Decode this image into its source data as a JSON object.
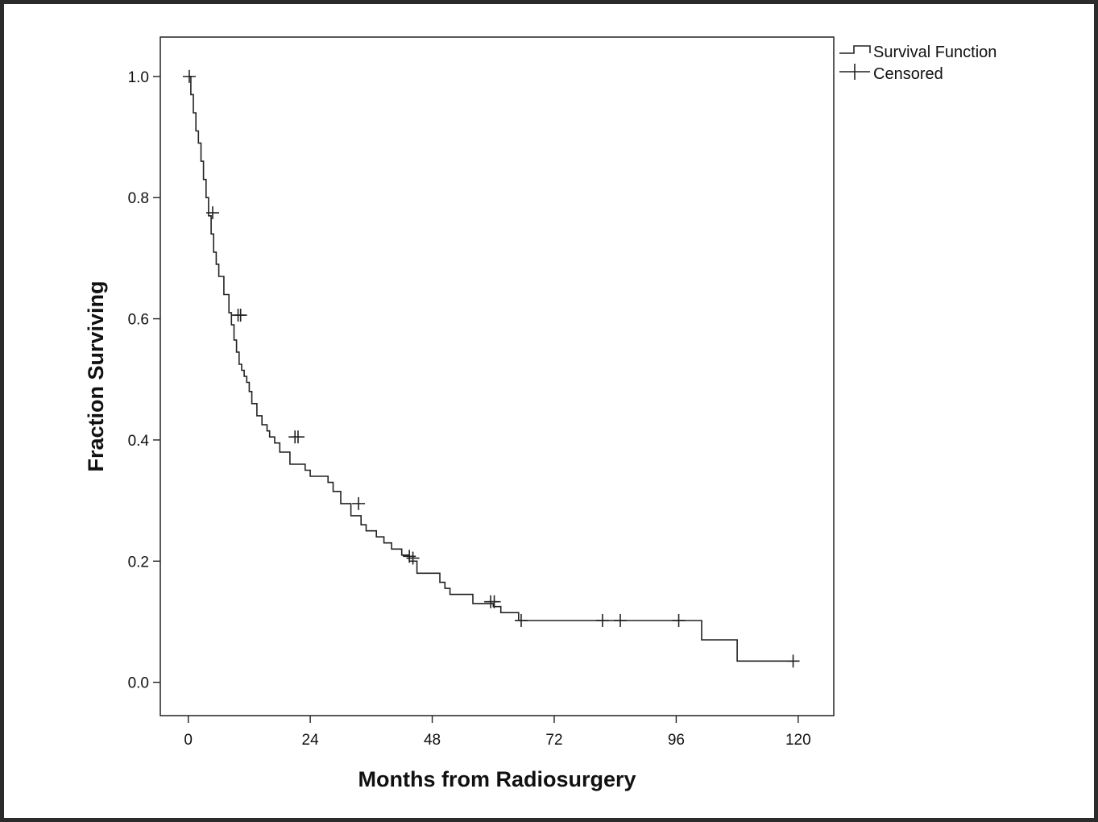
{
  "chart_data": {
    "type": "line",
    "subtype": "kaplan-meier",
    "title": "",
    "xlabel": "Months from Radiosurgery",
    "ylabel": "Fraction Surviving",
    "xlim": [
      -5.5,
      127
    ],
    "ylim": [
      -0.055,
      1.065
    ],
    "x_ticks": [
      0,
      24,
      48,
      72,
      96,
      120
    ],
    "x_tick_labels": [
      "0",
      "24",
      "48",
      "72",
      "96",
      "120"
    ],
    "y_ticks": [
      0.0,
      0.2,
      0.4,
      0.6,
      0.8,
      1.0
    ],
    "y_tick_labels": [
      "0.0",
      "0.2",
      "0.4",
      "0.6",
      "0.8",
      "1.0"
    ],
    "grid": false,
    "legend_placement": "outside-top-right",
    "legend": [
      {
        "label": "Survival Function",
        "symbol": "step-line"
      },
      {
        "label": "Censored",
        "symbol": "plus"
      }
    ],
    "series": [
      {
        "name": "Survival Function",
        "x": [
          0,
          0.5,
          1.0,
          1.5,
          2.0,
          2.5,
          3.0,
          3.5,
          4.0,
          4.5,
          5.0,
          5.5,
          6.0,
          7.0,
          8.0,
          8.5,
          9.0,
          9.5,
          10.0,
          10.5,
          11.0,
          11.5,
          12.0,
          12.5,
          13.5,
          14.5,
          15.5,
          16.0,
          17.0,
          18.0,
          20.0,
          22.0,
          23.0,
          24.0,
          27.5,
          28.5,
          30.0,
          32.0,
          34.0,
          35.0,
          37.0,
          38.5,
          40.0,
          42.0,
          43.5,
          45.0,
          49.5,
          50.5,
          51.5,
          56.0,
          60.0,
          61.5,
          65.0,
          101.0,
          108.0,
          119
        ],
        "y": [
          1.0,
          0.97,
          0.94,
          0.91,
          0.89,
          0.86,
          0.83,
          0.8,
          0.77,
          0.74,
          0.71,
          0.69,
          0.67,
          0.64,
          0.61,
          0.59,
          0.565,
          0.545,
          0.525,
          0.515,
          0.505,
          0.495,
          0.48,
          0.46,
          0.44,
          0.425,
          0.415,
          0.405,
          0.395,
          0.38,
          0.36,
          0.36,
          0.35,
          0.34,
          0.33,
          0.315,
          0.295,
          0.275,
          0.26,
          0.25,
          0.24,
          0.23,
          0.22,
          0.21,
          0.2,
          0.18,
          0.165,
          0.155,
          0.145,
          0.13,
          0.125,
          0.115,
          0.102,
          0.07,
          0.035,
          0.035
        ]
      }
    ],
    "censored": [
      {
        "x": 0.2,
        "y": 1.0
      },
      {
        "x": 4.8,
        "y": 0.775
      },
      {
        "x": 9.8,
        "y": 0.606
      },
      {
        "x": 10.3,
        "y": 0.606
      },
      {
        "x": 21.0,
        "y": 0.405
      },
      {
        "x": 21.6,
        "y": 0.405
      },
      {
        "x": 33.5,
        "y": 0.295
      },
      {
        "x": 43.5,
        "y": 0.208
      },
      {
        "x": 44.2,
        "y": 0.205
      },
      {
        "x": 59.5,
        "y": 0.133
      },
      {
        "x": 60.2,
        "y": 0.133
      },
      {
        "x": 65.5,
        "y": 0.102
      },
      {
        "x": 81.5,
        "y": 0.102
      },
      {
        "x": 85.0,
        "y": 0.102
      },
      {
        "x": 96.5,
        "y": 0.102
      },
      {
        "x": 119.0,
        "y": 0.035
      }
    ]
  }
}
